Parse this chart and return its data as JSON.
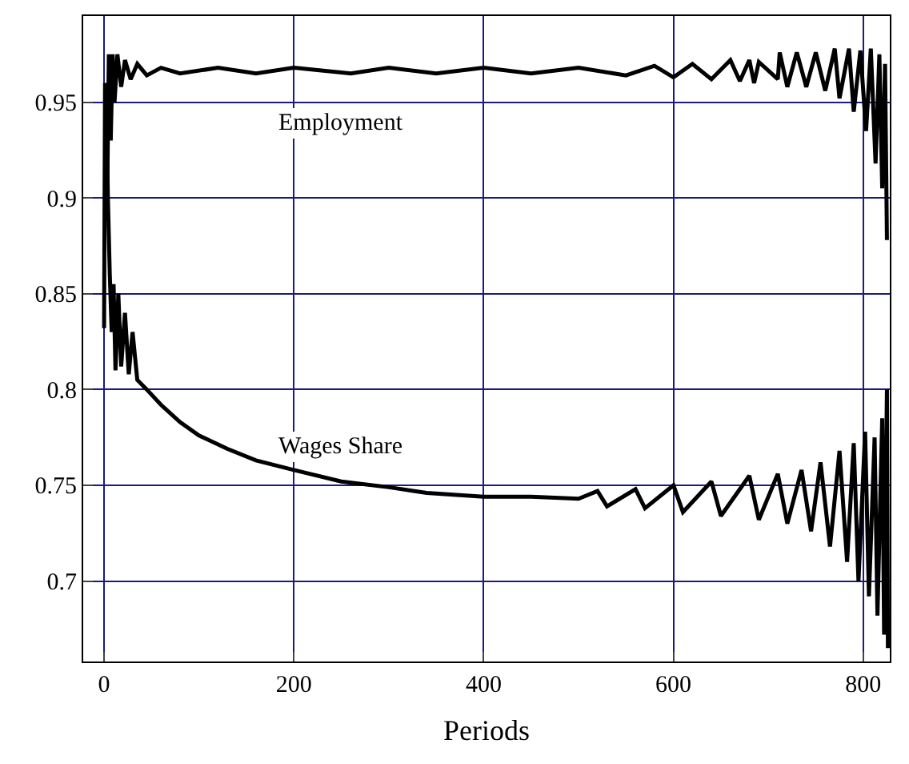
{
  "chart_data": {
    "type": "line",
    "xlabel": "Periods",
    "xlim": [
      -22,
      828
    ],
    "ylim": [
      0.658,
      0.995
    ],
    "xticks": [
      0,
      200,
      400,
      600,
      800
    ],
    "yticks": [
      0.7,
      0.75,
      0.8,
      0.85,
      0.9,
      0.95
    ],
    "grid": true,
    "legend": false,
    "marker": "none",
    "line_style": "solid",
    "series": [
      {
        "name": "Employment",
        "color": "#000000",
        "x": [
          0,
          1,
          3,
          5,
          7,
          9,
          11,
          14,
          18,
          22,
          28,
          35,
          45,
          60,
          80,
          120,
          160,
          200,
          260,
          300,
          350,
          400,
          450,
          500,
          550,
          580,
          600,
          620,
          640,
          660,
          670,
          680,
          685,
          690,
          710,
          712,
          720,
          730,
          740,
          750,
          760,
          770,
          775,
          785,
          790,
          797,
          803,
          808,
          813,
          817,
          820,
          823,
          825
        ],
        "values": [
          0.832,
          0.96,
          0.89,
          0.975,
          0.93,
          0.975,
          0.95,
          0.975,
          0.958,
          0.972,
          0.962,
          0.97,
          0.964,
          0.968,
          0.965,
          0.968,
          0.965,
          0.968,
          0.965,
          0.968,
          0.965,
          0.968,
          0.965,
          0.968,
          0.964,
          0.969,
          0.963,
          0.97,
          0.962,
          0.972,
          0.961,
          0.972,
          0.96,
          0.971,
          0.962,
          0.976,
          0.958,
          0.976,
          0.958,
          0.976,
          0.956,
          0.978,
          0.952,
          0.978,
          0.945,
          0.977,
          0.935,
          0.978,
          0.918,
          0.975,
          0.905,
          0.97,
          0.878
        ]
      },
      {
        "name": "Wages Share",
        "color": "#000000",
        "x": [
          2,
          4,
          6,
          8,
          10,
          12,
          15,
          18,
          22,
          26,
          30,
          35,
          45,
          60,
          80,
          100,
          130,
          160,
          200,
          250,
          300,
          340,
          400,
          450,
          500,
          520,
          530,
          560,
          570,
          600,
          610,
          640,
          650,
          680,
          690,
          710,
          720,
          735,
          745,
          755,
          765,
          775,
          783,
          790,
          795,
          802,
          806,
          812,
          815,
          820,
          822,
          825,
          826
        ],
        "values": [
          0.96,
          0.9,
          0.86,
          0.83,
          0.855,
          0.81,
          0.85,
          0.812,
          0.84,
          0.808,
          0.83,
          0.805,
          0.8,
          0.792,
          0.783,
          0.776,
          0.769,
          0.763,
          0.758,
          0.752,
          0.749,
          0.746,
          0.744,
          0.744,
          0.743,
          0.747,
          0.739,
          0.748,
          0.738,
          0.75,
          0.736,
          0.752,
          0.734,
          0.755,
          0.732,
          0.756,
          0.73,
          0.758,
          0.726,
          0.762,
          0.718,
          0.768,
          0.71,
          0.772,
          0.7,
          0.778,
          0.692,
          0.775,
          0.682,
          0.785,
          0.672,
          0.8,
          0.665
        ]
      }
    ]
  }
}
